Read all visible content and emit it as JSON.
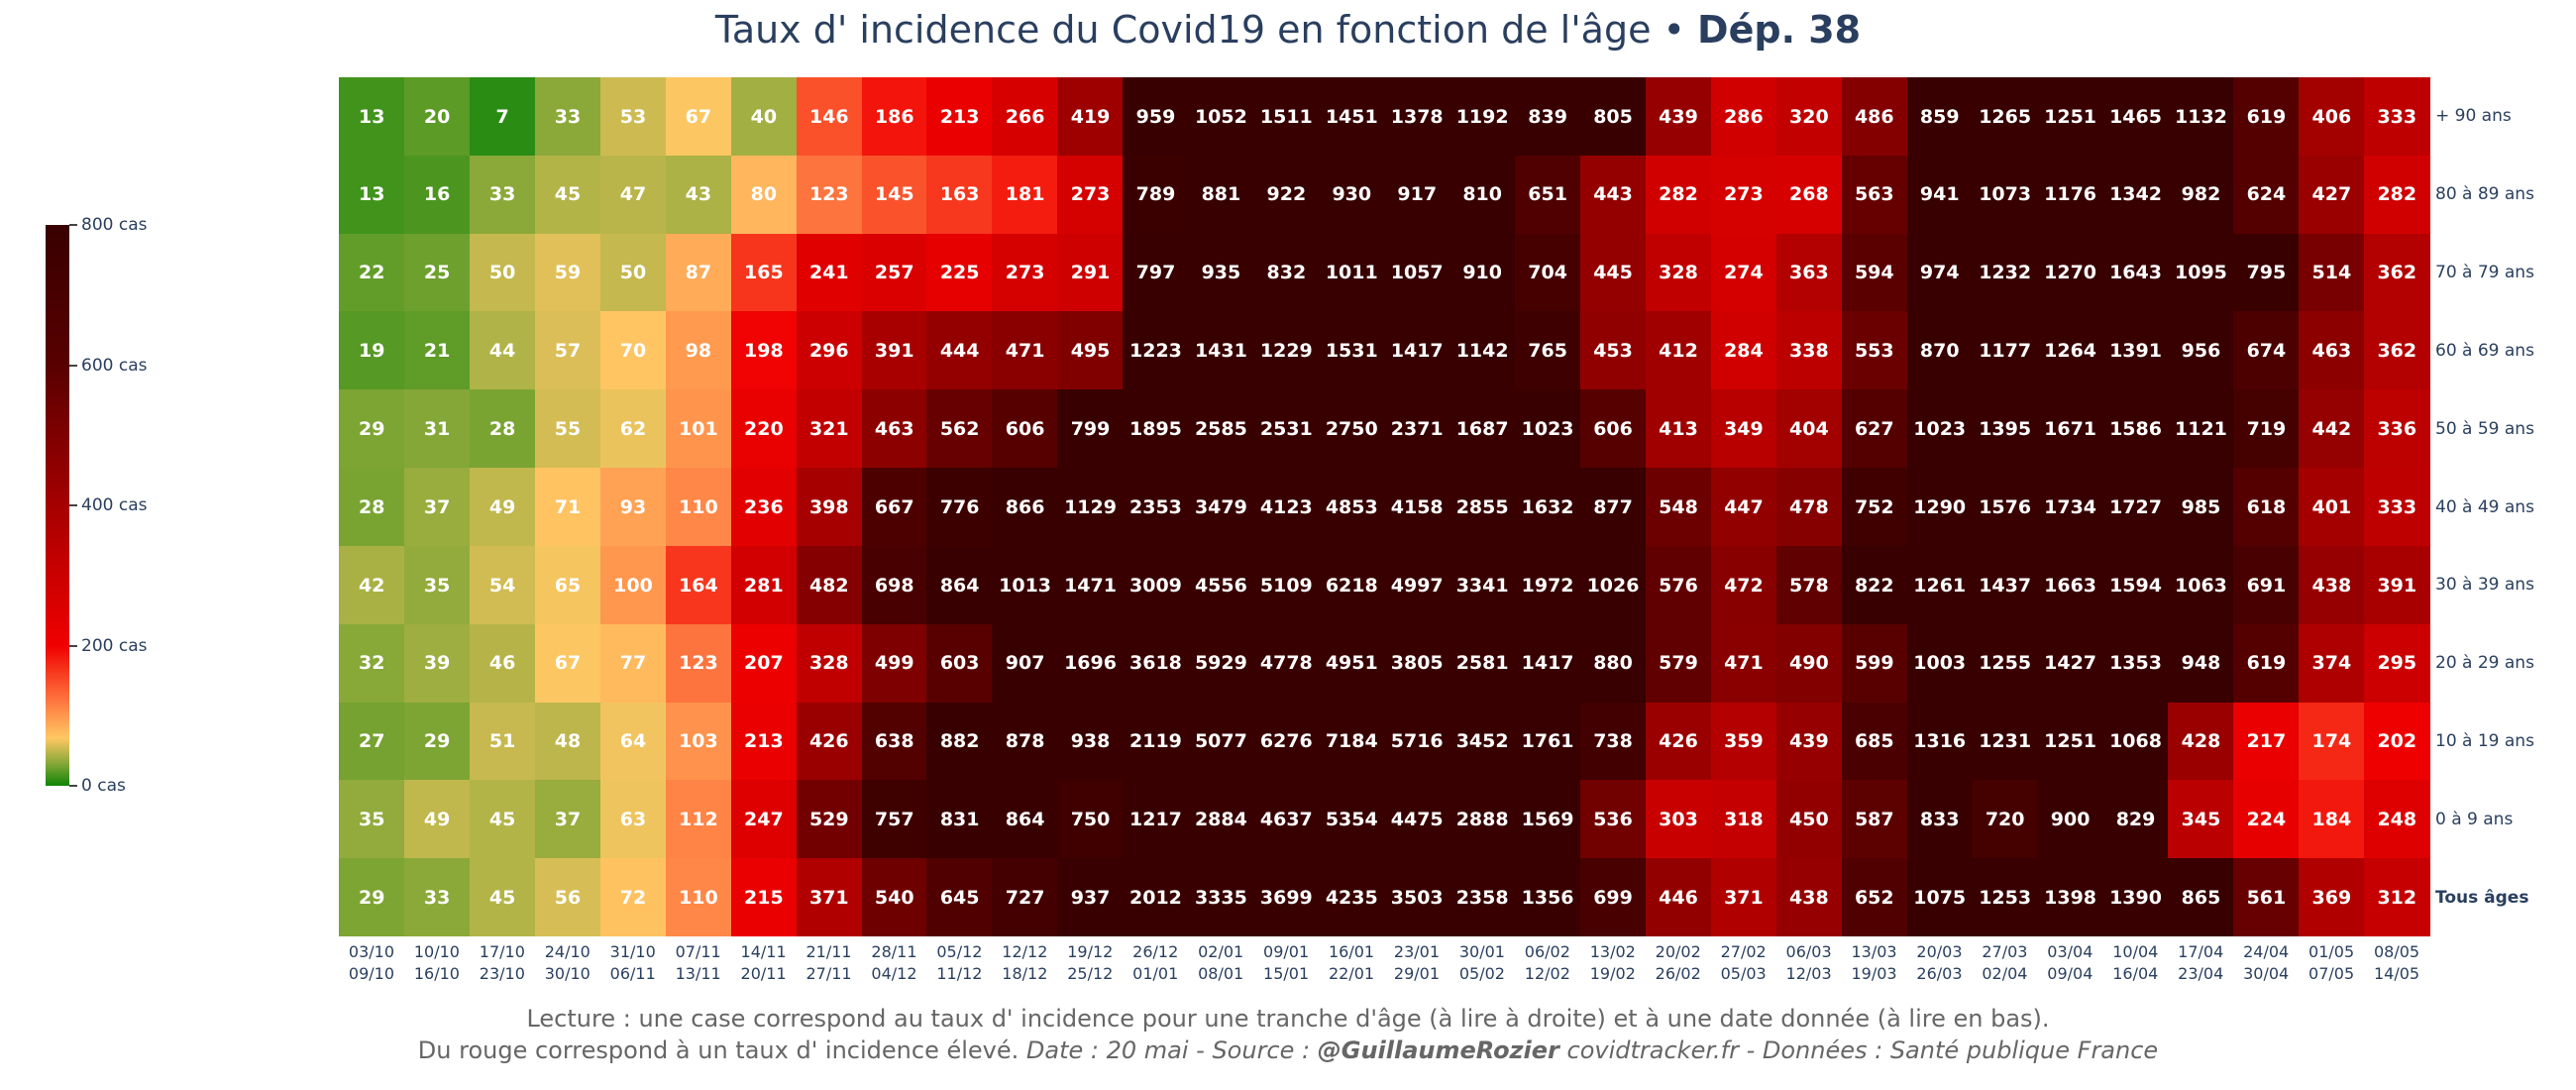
{
  "title": {
    "main": "Taux d' incidence du Covid19 en fonction de l'âge • ",
    "bold": "Dép. 38"
  },
  "footer": {
    "line1": "Lecture : une case correspond au taux d' incidence pour une tranche d'âge (à lire à droite) et à une date donnée (à lire en bas).",
    "line2_plain": "Du rouge correspond à un taux d' incidence élevé. ",
    "line2_italic": "Date : 20 mai - Source : ",
    "line2_author": "@GuillaumeRozier",
    "line2_rest": " covidtracker.fr - Données : Santé publique France"
  },
  "chart_data": {
    "type": "heatmap",
    "colorbar": {
      "ticks": [
        "0 cas",
        "200 cas",
        "400 cas",
        "600 cas",
        "800 cas"
      ],
      "tick_values": [
        0,
        200,
        400,
        600,
        800
      ],
      "range": [
        0,
        800
      ],
      "colorscale": [
        [
          0,
          "#108408"
        ],
        [
          0.04,
          "#88a838"
        ],
        [
          0.085,
          "#ffc864"
        ],
        [
          0.15,
          "#ff7840"
        ],
        [
          0.25,
          "#f00000"
        ],
        [
          0.5,
          "#a50000"
        ],
        [
          0.75,
          "#580000"
        ],
        [
          1,
          "#380000"
        ]
      ]
    },
    "x_start": [
      "03/10",
      "10/10",
      "17/10",
      "24/10",
      "31/10",
      "07/11",
      "14/11",
      "21/11",
      "28/11",
      "05/12",
      "12/12",
      "19/12",
      "26/12",
      "02/01",
      "09/01",
      "16/01",
      "23/01",
      "30/01",
      "06/02",
      "13/02",
      "20/02",
      "27/02",
      "06/03",
      "13/03",
      "20/03",
      "27/03",
      "03/04",
      "10/04",
      "17/04",
      "24/04",
      "01/05",
      "08/05"
    ],
    "x_end": [
      "09/10",
      "16/10",
      "23/10",
      "30/10",
      "06/11",
      "13/11",
      "20/11",
      "27/11",
      "04/12",
      "11/12",
      "18/12",
      "25/12",
      "01/01",
      "08/01",
      "15/01",
      "22/01",
      "29/01",
      "05/02",
      "12/02",
      "19/02",
      "26/02",
      "05/03",
      "12/03",
      "19/03",
      "26/03",
      "02/04",
      "09/04",
      "16/04",
      "23/04",
      "30/04",
      "07/05",
      "14/05"
    ],
    "rows": [
      "+ 90 ans",
      "80 à 89 ans",
      "70 à 79 ans",
      "60 à 69 ans",
      "50 à 59 ans",
      "40 à 49 ans",
      "30 à 39 ans",
      "20 à 29 ans",
      "10 à 19 ans",
      "0 à 9 ans",
      "Tous âges"
    ],
    "values": [
      [
        13,
        20,
        7,
        33,
        53,
        67,
        40,
        146,
        186,
        213,
        266,
        419,
        959,
        1052,
        1511,
        1451,
        1378,
        1192,
        839,
        805,
        439,
        286,
        320,
        486,
        859,
        1265,
        1251,
        1465,
        1132,
        619,
        406,
        333
      ],
      [
        13,
        16,
        33,
        45,
        47,
        43,
        80,
        123,
        145,
        163,
        181,
        273,
        789,
        881,
        922,
        930,
        917,
        810,
        651,
        443,
        282,
        273,
        268,
        563,
        941,
        1073,
        1176,
        1342,
        982,
        624,
        427,
        282
      ],
      [
        22,
        25,
        50,
        59,
        50,
        87,
        165,
        241,
        257,
        225,
        273,
        291,
        797,
        935,
        832,
        1011,
        1057,
        910,
        704,
        445,
        328,
        274,
        363,
        594,
        974,
        1232,
        1270,
        1643,
        1095,
        795,
        514,
        362
      ],
      [
        19,
        21,
        44,
        57,
        70,
        98,
        198,
        296,
        391,
        444,
        471,
        495,
        1223,
        1431,
        1229,
        1531,
        1417,
        1142,
        765,
        453,
        412,
        284,
        338,
        553,
        870,
        1177,
        1264,
        1391,
        956,
        674,
        463,
        362
      ],
      [
        29,
        31,
        28,
        55,
        62,
        101,
        220,
        321,
        463,
        562,
        606,
        799,
        1895,
        2585,
        2531,
        2750,
        2371,
        1687,
        1023,
        606,
        413,
        349,
        404,
        627,
        1023,
        1395,
        1671,
        1586,
        1121,
        719,
        442,
        336
      ],
      [
        28,
        37,
        49,
        71,
        93,
        110,
        236,
        398,
        667,
        776,
        866,
        1129,
        2353,
        3479,
        4123,
        4853,
        4158,
        2855,
        1632,
        877,
        548,
        447,
        478,
        752,
        1290,
        1576,
        1734,
        1727,
        985,
        618,
        401,
        333
      ],
      [
        42,
        35,
        54,
        65,
        100,
        164,
        281,
        482,
        698,
        864,
        1013,
        1471,
        3009,
        4556,
        5109,
        6218,
        4997,
        3341,
        1972,
        1026,
        576,
        472,
        578,
        822,
        1261,
        1437,
        1663,
        1594,
        1063,
        691,
        438,
        391
      ],
      [
        32,
        39,
        46,
        67,
        77,
        123,
        207,
        328,
        499,
        603,
        907,
        1696,
        3618,
        5929,
        4778,
        4951,
        3805,
        2581,
        1417,
        880,
        579,
        471,
        490,
        599,
        1003,
        1255,
        1427,
        1353,
        948,
        619,
        374,
        295
      ],
      [
        27,
        29,
        51,
        48,
        64,
        103,
        213,
        426,
        638,
        882,
        878,
        938,
        2119,
        5077,
        6276,
        7184,
        5716,
        3452,
        1761,
        738,
        426,
        359,
        439,
        685,
        1316,
        1231,
        1251,
        1068,
        428,
        217,
        174,
        202
      ],
      [
        35,
        49,
        45,
        37,
        63,
        112,
        247,
        529,
        757,
        831,
        864,
        750,
        1217,
        2884,
        4637,
        5354,
        4475,
        2888,
        1569,
        536,
        303,
        318,
        450,
        587,
        833,
        720,
        900,
        829,
        345,
        224,
        184,
        248
      ],
      [
        29,
        33,
        45,
        56,
        72,
        110,
        215,
        371,
        540,
        645,
        727,
        937,
        2012,
        3335,
        3699,
        4235,
        3503,
        2358,
        1356,
        699,
        446,
        371,
        438,
        652,
        1075,
        1253,
        1398,
        1390,
        865,
        561,
        369,
        312
      ]
    ]
  }
}
